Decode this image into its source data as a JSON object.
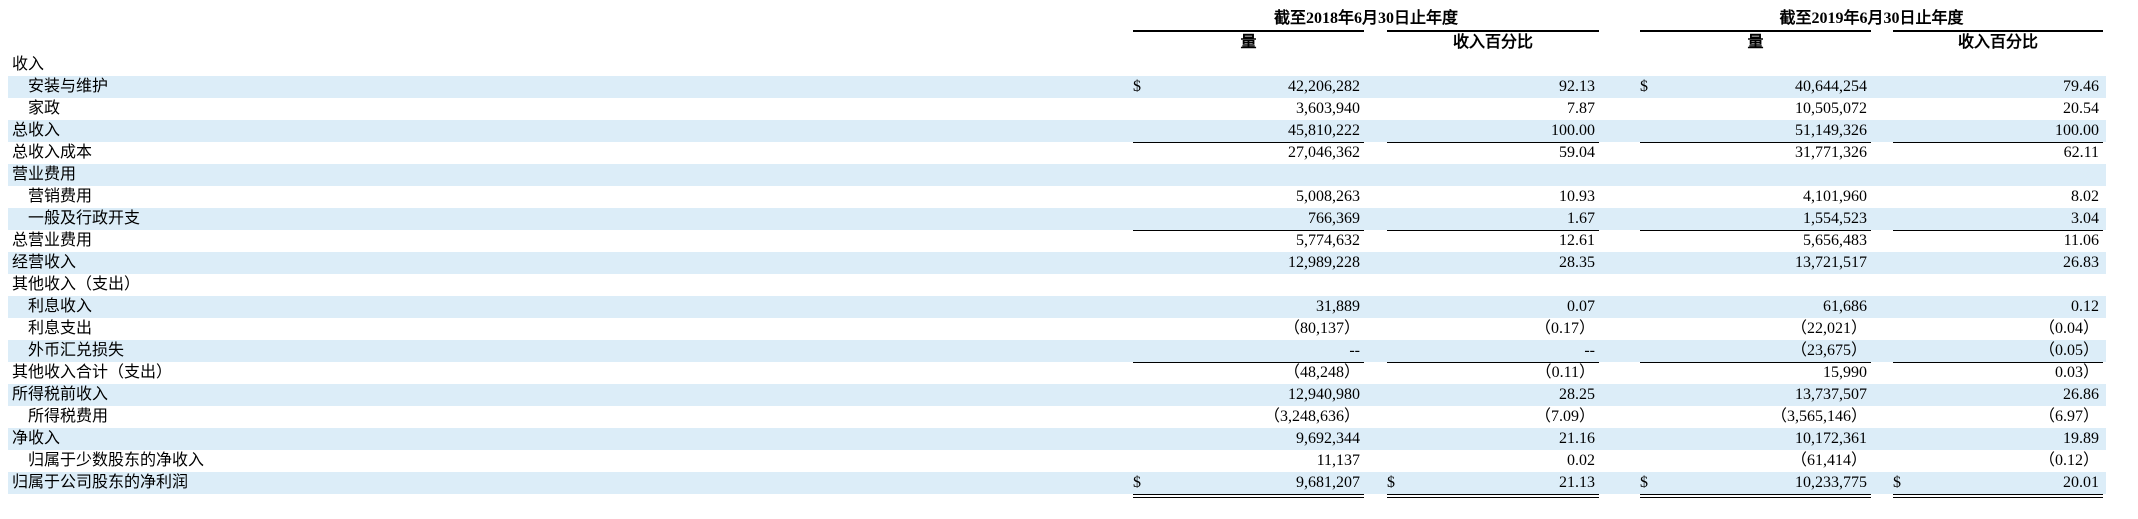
{
  "header": {
    "periods": [
      {
        "title": "截至2018年6月30日止年度",
        "columns": [
          "量",
          "收入百分比"
        ]
      },
      {
        "title": "截至2019年6月30日止年度",
        "columns": [
          "量",
          "收入百分比"
        ]
      }
    ]
  },
  "table": {
    "rows": [
      {
        "label": "收入",
        "level": 0
      },
      {
        "label": "安装与维护",
        "level": 1,
        "cells": [
          {
            "symbol": "$",
            "amount": "42,206,282"
          },
          "92.13",
          {
            "symbol": "$",
            "amount": "40,644,254"
          },
          "79.46"
        ]
      },
      {
        "label": "家政",
        "level": 1,
        "cells": [
          "3,603,940",
          "7.87",
          "10,505,072",
          "20.54"
        ]
      },
      {
        "label": "总收入",
        "level": 0,
        "cells": [
          "45,810,222",
          "100.00",
          "51,149,326",
          "100.00"
        ]
      },
      {
        "label": "总收入成本",
        "level": 0,
        "cells": [
          "27,046,362",
          "59.04",
          "31,771,326",
          "62.11"
        ]
      },
      {
        "label": "营业费用",
        "level": 0
      },
      {
        "label": "营销费用",
        "level": 1,
        "cells": [
          "5,008,263",
          "10.93",
          "4,101,960",
          "8.02"
        ]
      },
      {
        "label": "一般及行政开支",
        "level": 1,
        "cells": [
          "766,369",
          "1.67",
          "1,554,523",
          "3.04"
        ]
      },
      {
        "label": "总营业费用",
        "level": 0,
        "cells": [
          "5,774,632",
          "12.61",
          "5,656,483",
          "11.06"
        ]
      },
      {
        "label": "经营收入",
        "level": 0,
        "cells": [
          "12,989,228",
          "28.35",
          "13,721,517",
          "26.83"
        ]
      },
      {
        "label": "其他收入（支出）",
        "level": 0
      },
      {
        "label": "利息收入",
        "level": 1,
        "cells": [
          "31,889",
          "0.07",
          "61,686",
          "0.12"
        ]
      },
      {
        "label": "利息支出",
        "level": 1,
        "cells": [
          "（80,137）",
          "（0.17）",
          "（22,021）",
          "（0.04）"
        ]
      },
      {
        "label": "外币汇兑损失",
        "level": 1,
        "cells": [
          "--",
          "--",
          "（23,675）",
          "（0.05）"
        ]
      },
      {
        "label": "其他收入合计（支出）",
        "level": 0,
        "cells": [
          "（48,248）",
          "（0.11）",
          "15,990",
          "0.03）"
        ]
      },
      {
        "label": "所得税前收入",
        "level": 0,
        "cells": [
          "12,940,980",
          "28.25",
          "13,737,507",
          "26.86"
        ]
      },
      {
        "label": "所得税费用",
        "level": 1,
        "cells": [
          "（3,248,636）",
          "（7.09）",
          "（3,565,146）",
          "（6.97）"
        ]
      },
      {
        "label": "净收入",
        "level": 0,
        "cells": [
          "9,692,344",
          "21.16",
          "10,172,361",
          "19.89"
        ]
      },
      {
        "label": "归属于少数股东的净收入",
        "level": 1,
        "cells": [
          "11,137",
          "0.02",
          "（61,414）",
          "（0.12）"
        ]
      },
      {
        "label": "归属于公司股东的净利润",
        "level": 0,
        "cells": [
          {
            "symbol": "$",
            "amount": "9,681,207"
          },
          {
            "symbol": "$",
            "amount": "21.13"
          },
          {
            "symbol": "$",
            "amount": "10,233,775"
          },
          {
            "symbol": "$",
            "amount": "20.01"
          }
        ]
      }
    ]
  }
}
